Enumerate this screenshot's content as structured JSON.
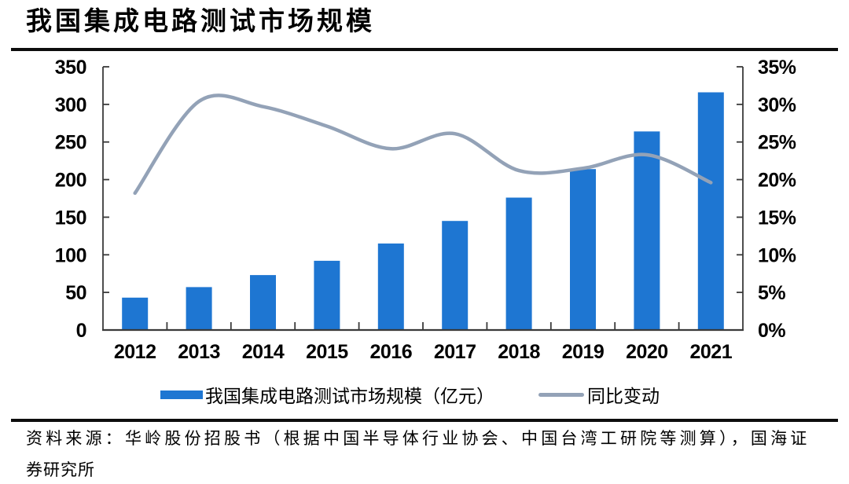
{
  "page_title": "我国集成电路测试市场规模",
  "chart_data": {
    "type": "bar",
    "title": "我国集成电路测试市场规模",
    "categories": [
      "2012",
      "2013",
      "2014",
      "2015",
      "2016",
      "2017",
      "2018",
      "2019",
      "2020",
      "2021"
    ],
    "series": [
      {
        "name": "我国集成电路测试市场规模（亿元）",
        "type": "bar",
        "axis": "left",
        "color": "#1e76d2",
        "values": [
          43,
          57,
          73,
          92,
          115,
          145,
          176,
          214,
          264,
          316
        ]
      },
      {
        "name": "同比变动",
        "type": "line",
        "axis": "right",
        "color": "#93a2b7",
        "unit": "%",
        "values": [
          18.2,
          30.4,
          29.7,
          27.1,
          24.1,
          26.1,
          21.2,
          21.5,
          23.3,
          19.6
        ]
      }
    ],
    "left_axis": {
      "min": 0,
      "max": 350,
      "ticks": [
        0,
        50,
        100,
        150,
        200,
        250,
        300,
        350
      ]
    },
    "right_axis": {
      "min": 0,
      "max": 35,
      "tick_labels": [
        "0%",
        "5%",
        "10%",
        "15%",
        "20%",
        "25%",
        "30%",
        "35%"
      ]
    },
    "legend_position": "bottom",
    "grid": false,
    "axis_color": "#3a3a3a"
  },
  "source_note": {
    "line1": "资料来源：华岭股份招股书（根据中国半导体行业协会、中国台湾工研院等测算），国海证",
    "line2": "券研究所"
  }
}
